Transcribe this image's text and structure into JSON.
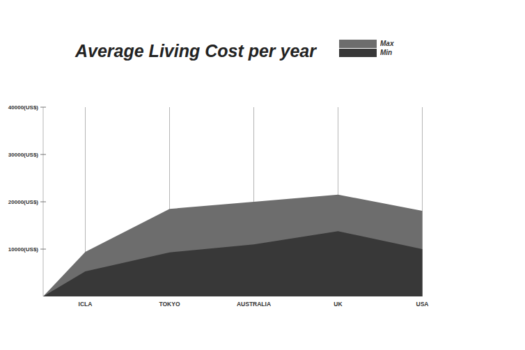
{
  "chart_data": {
    "type": "area",
    "title": "Average Living Cost per year",
    "categories": [
      "ICLA",
      "TOKYO",
      "AUSTRALIA",
      "UK",
      "USA"
    ],
    "series": [
      {
        "name": "Max",
        "color": "#6d6d6d",
        "values": [
          9400,
          18500,
          20000,
          21500,
          18100
        ]
      },
      {
        "name": "Min",
        "color": "#383838",
        "values": [
          5300,
          9300,
          11000,
          13800,
          10000
        ]
      }
    ],
    "ylim": [
      0,
      40000
    ],
    "yticks": [
      {
        "value": 10000,
        "label": "10000(US$)"
      },
      {
        "value": 20000,
        "label": "20000(US$)"
      },
      {
        "value": 30000,
        "label": "30000(US$)"
      },
      {
        "value": 40000,
        "label": "40000(US$)"
      }
    ],
    "grid": true,
    "legend": "top"
  }
}
